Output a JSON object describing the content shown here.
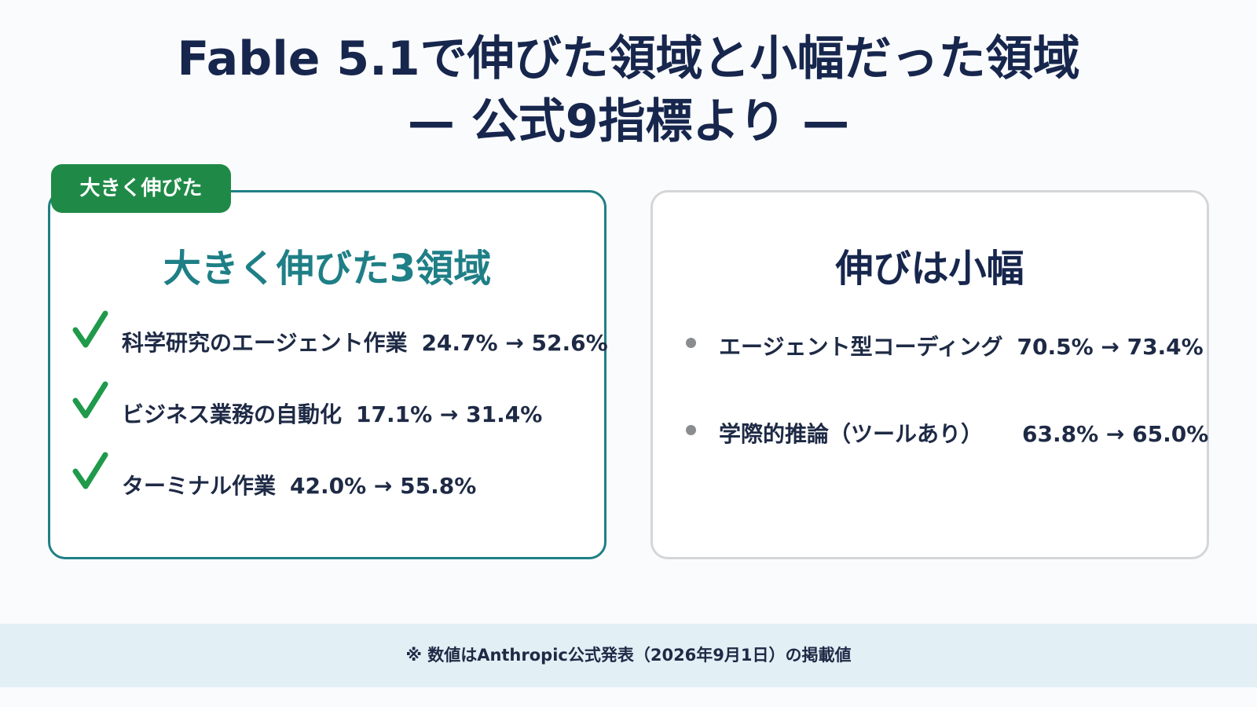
{
  "header": {
    "title": "Fable 5.1で伸びた領域と小幅だった領域",
    "subtitle": "— 公式9指標より —"
  },
  "left_panel": {
    "badge": "大きく伸びた",
    "heading": "大きく伸びた3領域",
    "items": [
      {
        "label": "科学研究のエージェント作業",
        "change": "24.7% → 52.6%"
      },
      {
        "label": "ビジネス業務の自動化",
        "change": "17.1% → 31.4%"
      },
      {
        "label": "ターミナル作業",
        "change": "42.0% → 55.8%"
      }
    ]
  },
  "right_panel": {
    "heading": "伸びは小幅",
    "items": [
      {
        "label": "エージェント型コーディング",
        "change": "70.5% → 73.4%"
      },
      {
        "label": "学際的推論（ツールあり）",
        "change": "63.8% → 65.0%"
      }
    ]
  },
  "footer": {
    "note": "※ 数値はAnthropic公式発表（2026年9月1日）の掲載値"
  }
}
